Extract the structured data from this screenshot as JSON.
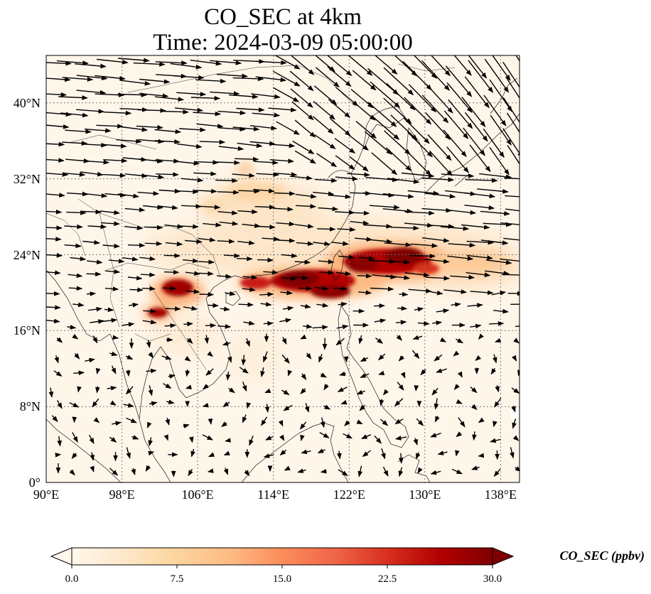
{
  "chart_data": {
    "type": "heatmap",
    "title_line1": "CO_SEC at 4km",
    "title_line2": "Time: 2024-03-09 05:00:00",
    "x_axis": {
      "ticks": [
        "90°E",
        "98°E",
        "106°E",
        "114°E",
        "122°E",
        "130°E",
        "138°E"
      ],
      "tick_values": [
        90,
        98,
        106,
        114,
        122,
        130,
        138
      ],
      "range": [
        90,
        140
      ]
    },
    "y_axis": {
      "ticks": [
        "0°",
        "8°N",
        "16°N",
        "24°N",
        "32°N",
        "40°N"
      ],
      "tick_values": [
        0,
        8,
        16,
        24,
        32,
        40
      ],
      "range": [
        0,
        45
      ]
    },
    "grid": "dotted",
    "colorbar": {
      "label": "CO_SEC (ppbv)",
      "ticks": [
        "0.0",
        "7.5",
        "15.0",
        "22.5",
        "30.0"
      ],
      "range": [
        0,
        30
      ],
      "extend": "both",
      "colormap": "OrRd",
      "colors": [
        "#fff7ec",
        "#fee8c8",
        "#fdd49e",
        "#fdbb84",
        "#fc8d59",
        "#ef6548",
        "#d7301f",
        "#b30000",
        "#7f0000"
      ]
    },
    "plumes": [
      {
        "name": "plume-taiwan-east",
        "lon": 125,
        "lat": 23.3,
        "peak": 30
      },
      {
        "name": "plume-south-china",
        "lon": 117.5,
        "lat": 21.3,
        "peak": 30
      },
      {
        "name": "plume-north-laos",
        "lon": 103,
        "lat": 20.2,
        "peak": 28
      },
      {
        "name": "plume-myanmar",
        "lon": 101,
        "lat": 17.5,
        "peak": 26
      },
      {
        "name": "plume-east-china-sea",
        "lon": 112,
        "lat": 30.5,
        "peak": 8
      }
    ],
    "wind_vectors": "quiver arrows, westerly north of 20°N, weak and variable south of 16°N"
  }
}
